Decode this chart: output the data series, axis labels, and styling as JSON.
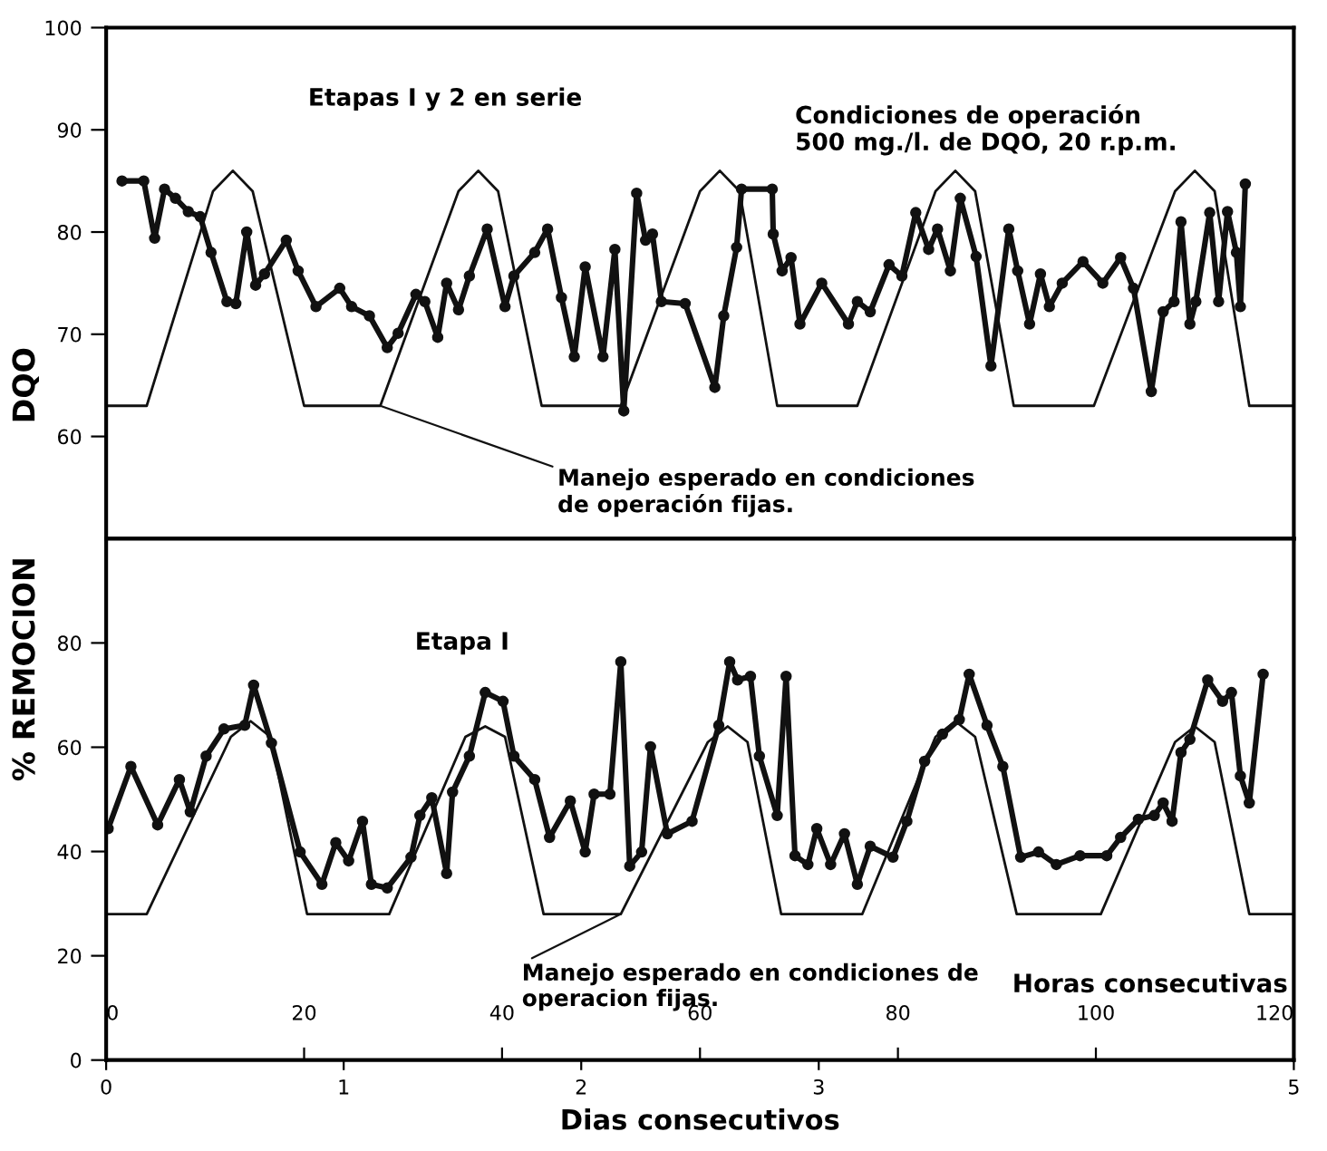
{
  "chart_data": [
    {
      "type": "line",
      "ylabel": "DQO",
      "xlim": [
        0,
        120
      ],
      "ylim": [
        50,
        100
      ],
      "yticks": [
        60,
        70,
        80,
        90,
        100
      ],
      "tick_labels": "y",
      "grid": false,
      "annotations": [
        "Etapas I y 2 en serie",
        "Condiciones de operación\n500 mg./l. de DQO, 20 r.p.m.",
        {
          "text": "Manejo esperado en condiciones\nde operación fijas.",
          "x": 27.7,
          "y": 63
        }
      ],
      "series": [
        {
          "color": "#111111",
          "marker": "circle",
          "line_style": "solid",
          "x": [
            1.6,
            3.8,
            4.9,
            5.9,
            7.0,
            8.3,
            9.5,
            10.6,
            12.2,
            13.1,
            14.2,
            15.1,
            16.0,
            18.2,
            19.4,
            21.2,
            23.6,
            24.8,
            26.6,
            28.4,
            29.5,
            31.3,
            32.2,
            33.5,
            34.4,
            35.6,
            36.7,
            38.5,
            40.3,
            41.2,
            43.3,
            44.6,
            46.0,
            47.3,
            48.4,
            50.2,
            51.4,
            52.3,
            53.6,
            54.5,
            55.2,
            56.1,
            58.5,
            61.5,
            62.4,
            63.7,
            64.2,
            67.3,
            67.4,
            68.3,
            69.2,
            70.1,
            72.3,
            75.0,
            75.9,
            77.2,
            79.1,
            80.4,
            81.8,
            83.1,
            84.0,
            85.3,
            86.3,
            87.9,
            89.4,
            91.2,
            92.1,
            93.3,
            94.4,
            95.3,
            96.6,
            98.7,
            100.7,
            102.5,
            103.8,
            105.6,
            106.8,
            107.9,
            108.6,
            109.5,
            110.1,
            111.5,
            112.4,
            113.3,
            114.2,
            114.6,
            115.1
          ],
          "values": [
            85,
            85,
            79.4,
            84.2,
            83.3,
            82,
            81.5,
            78,
            73.2,
            73,
            80,
            74.8,
            75.9,
            79.2,
            76.2,
            72.7,
            74.5,
            72.7,
            71.8,
            68.7,
            70.1,
            73.9,
            73.2,
            69.7,
            75,
            72.4,
            75.7,
            80.3,
            72.7,
            75.7,
            78,
            80.3,
            73.6,
            67.8,
            76.6,
            67.8,
            78.3,
            62.5,
            83.8,
            79.2,
            79.8,
            73.2,
            73,
            64.8,
            71.8,
            78.5,
            84.2,
            84.2,
            79.8,
            76.2,
            77.5,
            71,
            75,
            71,
            73.2,
            72.2,
            76.8,
            75.7,
            81.9,
            78.3,
            80.3,
            76.2,
            83.3,
            77.6,
            66.9,
            80.3,
            76.2,
            71,
            75.9,
            72.7,
            75,
            77.1,
            75,
            77.5,
            74.5,
            64.4,
            72.2,
            73.2,
            81,
            71,
            73.2,
            81.9,
            73.2,
            82,
            78,
            72.7,
            84.7
          ]
        },
        {
          "color": "#111111",
          "marker": "none",
          "line_style": "solid",
          "x": [
            0,
            4.1,
            10.8,
            12.8,
            14.8,
            20,
            27.7,
            35.6,
            37.6,
            39.6,
            44,
            52,
            60,
            62,
            64,
            67.8,
            75.9,
            83.8,
            85.8,
            87.8,
            91.7,
            99.8,
            108,
            110,
            112,
            115.5,
            120
          ],
          "values": [
            63,
            63,
            84,
            86,
            84,
            63,
            63,
            84,
            86,
            84,
            63,
            63,
            84,
            86,
            84,
            63,
            63,
            84,
            86,
            84,
            63,
            63,
            84,
            86,
            84,
            63,
            63
          ]
        }
      ]
    },
    {
      "type": "line",
      "ylabel": "% REMOCION",
      "xlabel": "Horas consecutivas",
      "x2label": "Dias consecutivos",
      "xlim": [
        0,
        120
      ],
      "xticks": [
        0,
        20,
        40,
        60,
        80,
        100,
        120
      ],
      "x2lim": [
        0,
        5
      ],
      "x2ticks": [
        0,
        1,
        2,
        3,
        5
      ],
      "ylim": [
        0,
        100
      ],
      "yticks": [
        0,
        20,
        40,
        60,
        80
      ],
      "grid": false,
      "annotations": [
        "Etapa I",
        {
          "text": "Manejo esperado en condiciones de\noperacion fijas.",
          "x": 52,
          "y": 28
        }
      ],
      "series": [
        {
          "color": "#111111",
          "marker": "circle",
          "line_style": "solid",
          "x": [
            0.2,
            2.5,
            5.2,
            7.4,
            8.5,
            10.1,
            11.9,
            14.0,
            14.9,
            16.7,
            19.6,
            21.8,
            23.2,
            24.5,
            25.9,
            26.8,
            28.4,
            30.8,
            31.7,
            32.9,
            34.4,
            35.0,
            36.7,
            38.3,
            40.1,
            41.2,
            43.3,
            44.8,
            46.9,
            48.4,
            49.3,
            50.9,
            52.0,
            52.9,
            54.1,
            55.0,
            56.7,
            59.2,
            61.9,
            63.0,
            63.8,
            65.1,
            66.0,
            67.8,
            68.7,
            69.6,
            70.9,
            71.8,
            73.2,
            74.6,
            75.9,
            77.2,
            79.5,
            80.9,
            82.7,
            84.5,
            86.2,
            87.2,
            89.0,
            90.6,
            92.4,
            94.2,
            96.0,
            98.4,
            101.1,
            102.5,
            104.3,
            105.9,
            106.8,
            107.7,
            108.6,
            109.5,
            111.3,
            112.8,
            113.7,
            114.6,
            115.5,
            116.9
          ],
          "values": [
            44.4,
            56.3,
            45.1,
            53.8,
            47.6,
            58.3,
            63.5,
            64.2,
            71.9,
            60.8,
            39.9,
            33.7,
            41.7,
            38.2,
            45.8,
            33.7,
            33,
            38.9,
            46.9,
            50.3,
            35.8,
            51.4,
            58.3,
            70.5,
            68.8,
            58.3,
            53.8,
            42.7,
            49.7,
            39.9,
            51,
            51,
            76.4,
            37.2,
            39.9,
            60.1,
            43.4,
            45.8,
            64.2,
            76.4,
            72.9,
            73.6,
            58.3,
            46.9,
            73.6,
            39.2,
            37.5,
            44.4,
            37.5,
            43.4,
            33.7,
            41,
            38.9,
            45.8,
            57.3,
            62.5,
            65.3,
            74,
            64.2,
            56.3,
            38.9,
            39.9,
            37.5,
            39.2,
            39.2,
            42.7,
            46.2,
            46.9,
            49.3,
            45.8,
            59,
            61.5,
            72.9,
            68.8,
            70.5,
            54.5,
            49.3,
            74
          ]
        },
        {
          "color": "#111111",
          "marker": "none",
          "line_style": "solid",
          "x": [
            0,
            4.1,
            12.6,
            14.6,
            16.6,
            20.3,
            28.6,
            36.3,
            38.3,
            40.3,
            44.2,
            52,
            60.8,
            62.8,
            64.8,
            68.2,
            76.4,
            83.8,
            85.8,
            87.8,
            92,
            100.5,
            108,
            110,
            112,
            115.5,
            120
          ],
          "values": [
            28,
            28,
            62,
            65,
            62,
            28,
            28,
            62,
            64,
            62,
            28,
            28,
            61,
            64,
            61,
            28,
            28,
            62,
            65,
            62,
            28,
            28,
            61,
            64,
            61,
            28,
            28
          ]
        }
      ]
    }
  ]
}
